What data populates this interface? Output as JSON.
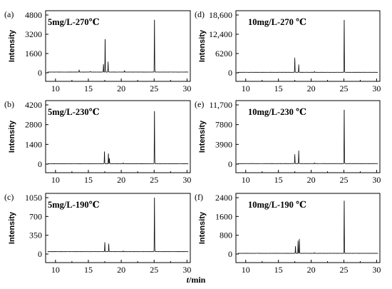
{
  "figure": {
    "x_axis_label_italic": "t",
    "x_axis_label_rest": "/min"
  },
  "chart_data": [
    {
      "id": "a",
      "panel_label": "(a)",
      "type": "line",
      "condition": "5mg/L-270℃",
      "ylabel": "Intensity",
      "xlabel": "",
      "xlim": [
        8.5,
        30.5
      ],
      "x_ticks": [
        10,
        15,
        20,
        25,
        30
      ],
      "ylim": [
        0,
        4800
      ],
      "y_ticks": [
        0,
        1600,
        3200,
        4800
      ],
      "y_tick_labels": [
        "0",
        "1600",
        "3200",
        "4800"
      ],
      "baseline": 60,
      "peaks": [
        {
          "x": 13.6,
          "y": 240
        },
        {
          "x": 15.3,
          "y": 120
        },
        {
          "x": 17.3,
          "y": 700
        },
        {
          "x": 17.55,
          "y": 3000
        },
        {
          "x": 18.0,
          "y": 900
        },
        {
          "x": 20.5,
          "y": 180
        },
        {
          "x": 25.05,
          "y": 4750
        }
      ]
    },
    {
      "id": "b",
      "panel_label": "(b)",
      "type": "line",
      "condition": "5mg/L-230℃",
      "ylabel": "Intensity",
      "xlabel": "",
      "xlim": [
        8.5,
        30.5
      ],
      "x_ticks": [
        10,
        15,
        20,
        25,
        30
      ],
      "ylim": [
        0,
        4200
      ],
      "y_ticks": [
        0,
        1400,
        2800,
        4200
      ],
      "y_tick_labels": [
        "0",
        "1400",
        "2800",
        "4200"
      ],
      "baseline": 30,
      "peaks": [
        {
          "x": 17.45,
          "y": 950
        },
        {
          "x": 18.05,
          "y": 800
        },
        {
          "x": 18.2,
          "y": 400
        },
        {
          "x": 20.3,
          "y": 90
        },
        {
          "x": 25.05,
          "y": 4050
        }
      ]
    },
    {
      "id": "c",
      "panel_label": "(c)",
      "type": "line",
      "condition": "5mg/L-190℃",
      "ylabel": "Intensity",
      "xlabel": "",
      "xlim": [
        8.5,
        30.5
      ],
      "x_ticks": [
        10,
        15,
        20,
        25,
        30
      ],
      "ylim": [
        0,
        1050
      ],
      "y_ticks": [
        0,
        350,
        700,
        1050
      ],
      "y_tick_labels": [
        "0",
        "350",
        "700",
        "1050"
      ],
      "baseline": 45,
      "peaks": [
        {
          "x": 17.5,
          "y": 220
        },
        {
          "x": 18.1,
          "y": 190
        },
        {
          "x": 20.3,
          "y": 60
        },
        {
          "x": 25.05,
          "y": 1130
        }
      ]
    },
    {
      "id": "d",
      "panel_label": "(d)",
      "type": "line",
      "condition": "10mg/L-270 ℃",
      "ylabel": "Intensity",
      "xlabel": "",
      "xlim": [
        8.5,
        30.5
      ],
      "x_ticks": [
        10,
        15,
        20,
        25,
        30
      ],
      "ylim": [
        0,
        18600
      ],
      "y_ticks": [
        0,
        6200,
        12400,
        18600
      ],
      "y_tick_labels": [
        "0",
        "6200",
        "12,400",
        "18,600"
      ],
      "baseline": 150,
      "peaks": [
        {
          "x": 17.5,
          "y": 4800
        },
        {
          "x": 18.1,
          "y": 2600
        },
        {
          "x": 20.5,
          "y": 450
        },
        {
          "x": 25.05,
          "y": 18300
        }
      ]
    },
    {
      "id": "e",
      "panel_label": "(e)",
      "type": "line",
      "condition": "10mg/L-230 ℃",
      "ylabel": "Intensity",
      "xlabel": "",
      "xlim": [
        8.5,
        30.5
      ],
      "x_ticks": [
        10,
        15,
        20,
        25,
        30
      ],
      "ylim": [
        0,
        11700
      ],
      "y_ticks": [
        0,
        3900,
        7800,
        11700
      ],
      "y_tick_labels": [
        "0",
        "3900",
        "7800",
        "11,700"
      ],
      "baseline": 100,
      "peaks": [
        {
          "x": 17.5,
          "y": 1900
        },
        {
          "x": 18.1,
          "y": 2700
        },
        {
          "x": 20.5,
          "y": 250
        },
        {
          "x": 25.05,
          "y": 11600
        }
      ]
    },
    {
      "id": "f",
      "panel_label": "(f)",
      "type": "line",
      "condition": "10mg/L-190 ℃",
      "ylabel": "Intensity",
      "xlabel": "",
      "xlim": [
        8.5,
        30.5
      ],
      "x_ticks": [
        10,
        15,
        20,
        25,
        30
      ],
      "ylim": [
        0,
        2400
      ],
      "y_ticks": [
        0,
        800,
        1600,
        2400
      ],
      "y_tick_labels": [
        "0",
        "800",
        "1600",
        "2400"
      ],
      "baseline": 30,
      "peaks": [
        {
          "x": 17.6,
          "y": 330
        },
        {
          "x": 18.0,
          "y": 570
        },
        {
          "x": 18.2,
          "y": 640
        },
        {
          "x": 20.5,
          "y": 60
        },
        {
          "x": 25.05,
          "y": 2450
        }
      ]
    }
  ]
}
